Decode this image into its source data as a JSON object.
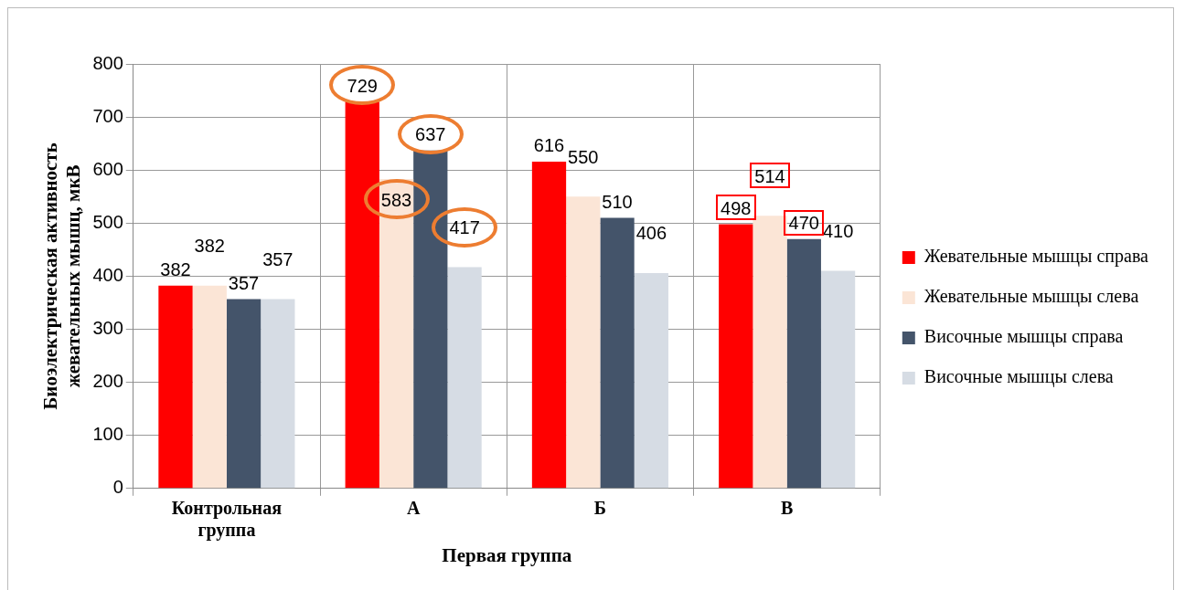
{
  "chart_data": {
    "type": "bar",
    "xlabel": "Первая группа",
    "ylabel": "Биоэлектрическая активность жевательных мышц, мкВ",
    "categories": [
      "Контрольная группа",
      "А",
      "Б",
      "В"
    ],
    "series": [
      {
        "name": "Жевательные мышцы справа",
        "color": "#ff0000",
        "values": [
          382,
          729,
          616,
          498
        ]
      },
      {
        "name": "Жевательные мышцы слева",
        "color": "#fbe5d6",
        "values": [
          382,
          583,
          550,
          514
        ]
      },
      {
        "name": "Височные мышцы справа",
        "color": "#44546a",
        "values": [
          357,
          637,
          510,
          470
        ]
      },
      {
        "name": "Височные мышцы слева",
        "color": "#d6dce4",
        "values": [
          357,
          417,
          406,
          410
        ]
      }
    ],
    "ylim": [
      0,
      800
    ],
    "yticks": [
      0,
      100,
      200,
      300,
      400,
      500,
      600,
      700,
      800
    ],
    "grid": true,
    "legend": "right",
    "data_labels": true
  }
}
